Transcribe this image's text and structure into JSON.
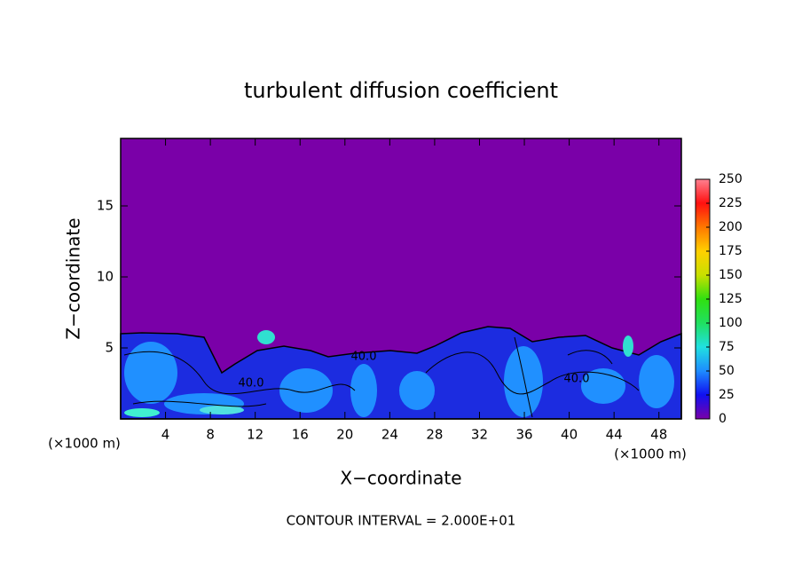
{
  "chart_data": {
    "type": "heatmap",
    "title": "turbulent diffusion coefficient",
    "xlabel": "X−coordinate",
    "ylabel": "Z−coordinate",
    "xunit": "(×1000 m)",
    "yunit": "(×1000 m)",
    "xlim": [
      0,
      50
    ],
    "ylim": [
      0,
      19.75
    ],
    "xticks": [
      4,
      8,
      12,
      16,
      20,
      24,
      28,
      32,
      36,
      40,
      44,
      48
    ],
    "yticks": [
      5,
      10,
      15
    ],
    "colorbar": {
      "lim": [
        0,
        250
      ],
      "ticks": [
        0,
        25,
        50,
        75,
        100,
        125,
        150,
        175,
        200,
        225,
        250
      ],
      "colors": [
        "#7a00a8",
        "#1010f0",
        "#1e8cff",
        "#20e0e0",
        "#20e060",
        "#30e010",
        "#c8e000",
        "#ffd000",
        "#ff7800",
        "#ff1010",
        "#ff8090"
      ]
    },
    "annotations": [
      "40.0",
      "40.0",
      "40.0"
    ],
    "footer": "CONTOUR INTERVAL = 2.000E+01"
  }
}
